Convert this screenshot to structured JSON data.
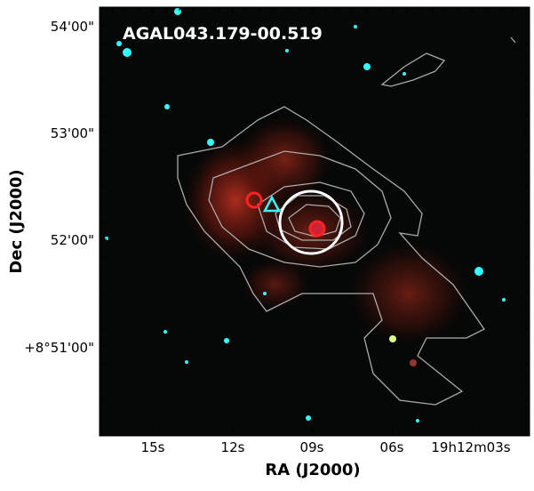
{
  "image": {
    "title": "AGAL043.179-00.519",
    "x_label": "RA (J2000)",
    "y_label": "Dec (J2000)",
    "x_ticks": [
      "15s",
      "12s",
      "09s",
      "06s",
      "19h12m03s"
    ],
    "y_ticks": [
      "54'00\"",
      "53'00\"",
      "52'00\"",
      "+8°51'00\""
    ]
  }
}
